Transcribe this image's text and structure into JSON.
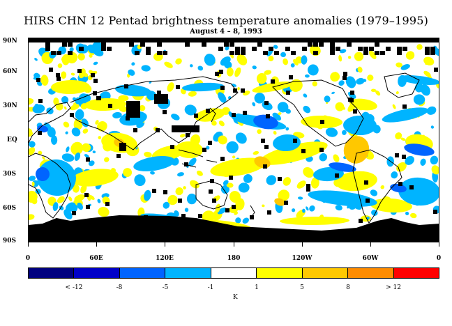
{
  "title": "HIRS CHN 12 Pentad brightness temperature anomalies (1979–1995)",
  "subtitle": "August 4 – 8, 1993",
  "lat_labels": [
    "90N",
    "60N",
    "30N",
    "EQ",
    "30S",
    "60S",
    "90S"
  ],
  "lon_labels": [
    "0",
    "60E",
    "120E",
    "180",
    "120W",
    "60W",
    "0"
  ],
  "colorbar": {
    "colors": [
      "#00007f",
      "#0000c8",
      "#0064ff",
      "#00b4ff",
      "#ffffff",
      "#ffff00",
      "#ffc800",
      "#ff8c00",
      "#ff0000"
    ],
    "labels": [
      "< -12",
      "-8",
      "-5",
      "-1",
      "1",
      "5",
      "8",
      "> 12"
    ],
    "units": "K"
  },
  "map_colors": {
    "land_outline": "#000000",
    "missing": "#000000",
    "pos_small": "#ffff00",
    "pos_mid": "#ffc800",
    "neg_small": "#00b4ff",
    "neg_mid": "#0064ff"
  }
}
